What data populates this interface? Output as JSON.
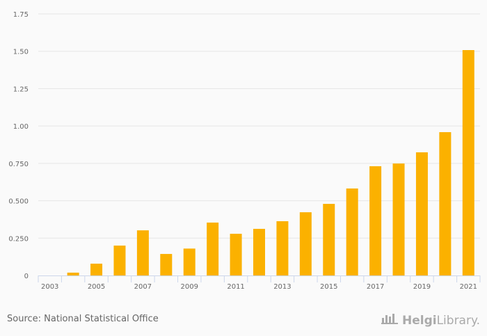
{
  "chart_data": {
    "type": "bar",
    "title": "",
    "xlabel": "",
    "ylabel": "",
    "ylim": [
      0,
      1.75
    ],
    "yticks": [
      "0",
      "0.250",
      "0.500",
      "0.750",
      "1.00",
      "1.25",
      "1.50",
      "1.75"
    ],
    "ytick_values": [
      0,
      0.25,
      0.5,
      0.75,
      1.0,
      1.25,
      1.5,
      1.75
    ],
    "categories": [
      "2003",
      "2004",
      "2005",
      "2006",
      "2007",
      "2008",
      "2009",
      "2010",
      "2011",
      "2012",
      "2013",
      "2014",
      "2015",
      "2016",
      "2017",
      "2018",
      "2019",
      "2020",
      "2021"
    ],
    "xtick_labels": [
      "2003",
      "2005",
      "2007",
      "2009",
      "2011",
      "2013",
      "2015",
      "2017",
      "2019",
      "2021"
    ],
    "values": [
      0,
      0.019,
      0.079,
      0.2,
      0.302,
      0.144,
      0.18,
      0.354,
      0.279,
      0.312,
      0.363,
      0.423,
      0.479,
      0.582,
      0.731,
      0.749,
      0.824,
      0.959,
      1.508
    ],
    "grid": true,
    "bar_color": "#FBB100"
  },
  "footer": {
    "source": "Source: National Statistical Office",
    "logo_bold": "Helgi",
    "logo_light": "Library."
  }
}
